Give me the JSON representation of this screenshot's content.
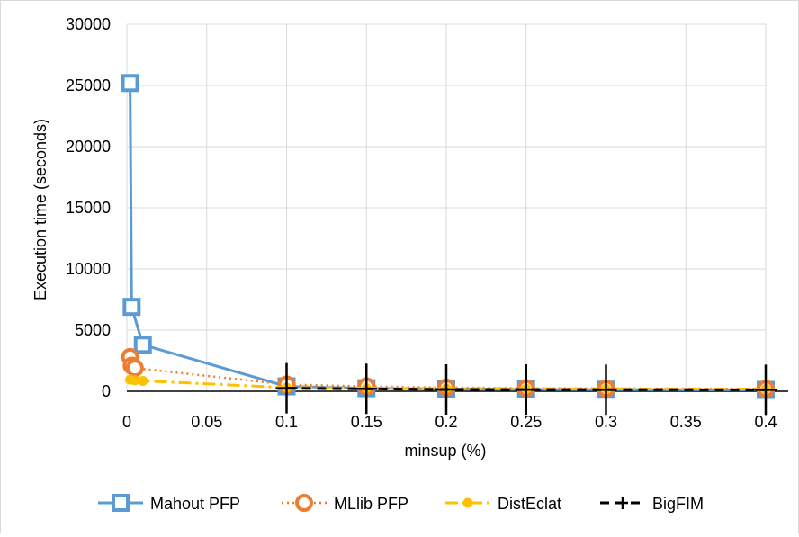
{
  "chart_data": {
    "type": "line",
    "title": "",
    "xlabel": "minsup (%)",
    "ylabel": "Execution time (seconds)",
    "xlim": [
      0,
      0.4
    ],
    "ylim": [
      0,
      30000
    ],
    "x_ticks": [
      0,
      0.05,
      0.1,
      0.15,
      0.2,
      0.25,
      0.3,
      0.35,
      0.4
    ],
    "y_ticks": [
      0,
      5000,
      10000,
      15000,
      20000,
      25000,
      30000
    ],
    "x_tick_labels": [
      "0",
      "0.05",
      "0.1",
      "0.15",
      "0.2",
      "0.25",
      "0.3",
      "0.35",
      "0.4"
    ],
    "y_tick_labels": [
      "0",
      "5000",
      "10000",
      "15000",
      "20000",
      "25000",
      "30000"
    ],
    "grid": true,
    "legend_position": "bottom",
    "series": [
      {
        "name": "Mahout PFP",
        "color": "#5b9bd5",
        "style": "solid",
        "marker": "square",
        "x": [
          0.002,
          0.003,
          0.01,
          0.1,
          0.15,
          0.2,
          0.25,
          0.3,
          0.4
        ],
        "y": [
          25200,
          6900,
          3800,
          400,
          250,
          180,
          150,
          130,
          110
        ]
      },
      {
        "name": "MLlib PFP",
        "color": "#ed7d31",
        "style": "dotted",
        "marker": "circle",
        "x": [
          0.002,
          0.003,
          0.005,
          0.1,
          0.15,
          0.2,
          0.25,
          0.3,
          0.4
        ],
        "y": [
          2800,
          2100,
          1900,
          550,
          400,
          300,
          250,
          220,
          200
        ]
      },
      {
        "name": "DistEclat",
        "color": "#ffc000",
        "style": "dashdot",
        "marker": "dot",
        "x": [
          0.002,
          0.005,
          0.01,
          0.1,
          0.15,
          0.2,
          0.25,
          0.3,
          0.4
        ],
        "y": [
          950,
          900,
          850,
          300,
          250,
          230,
          210,
          200,
          190
        ]
      },
      {
        "name": "BigFIM",
        "color": "#000000",
        "style": "dashed",
        "marker": "plus",
        "x": [
          0.1,
          0.15,
          0.2,
          0.25,
          0.3,
          0.4
        ],
        "y": [
          250,
          200,
          150,
          140,
          130,
          120
        ]
      }
    ]
  }
}
